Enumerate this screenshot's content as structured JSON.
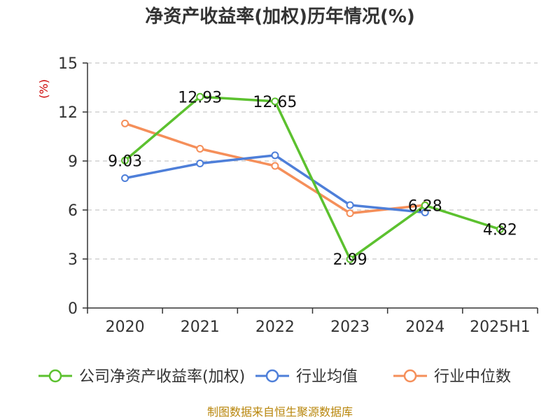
{
  "chart_data": {
    "type": "line",
    "title": "净资产收益率(加权)历年情况(%)",
    "ylabel": "(%)",
    "categories": [
      "2020",
      "2021",
      "2022",
      "2023",
      "2024",
      "2025H1"
    ],
    "ylim": [
      0,
      15
    ],
    "yticks": [
      0,
      3,
      6,
      9,
      12,
      15
    ],
    "grid": true,
    "legend_position": "bottom",
    "series": [
      {
        "name": "公司净资产收益率(加权)",
        "color": "#5cc12f",
        "values": [
          9.03,
          12.93,
          12.65,
          2.99,
          6.28,
          4.82
        ],
        "labels": [
          "9.03",
          "12.93",
          "12.65",
          "2.99",
          "6.28",
          "4.82"
        ]
      },
      {
        "name": "行业均值",
        "color": "#4e7fd9",
        "values": [
          7.95,
          8.85,
          9.35,
          6.3,
          5.85,
          null
        ],
        "labels": []
      },
      {
        "name": "行业中位数",
        "color": "#f58f5a",
        "values": [
          11.3,
          9.75,
          8.7,
          5.8,
          6.3,
          null
        ],
        "labels": []
      }
    ],
    "source": "制图数据来自恒生聚源数据库"
  }
}
